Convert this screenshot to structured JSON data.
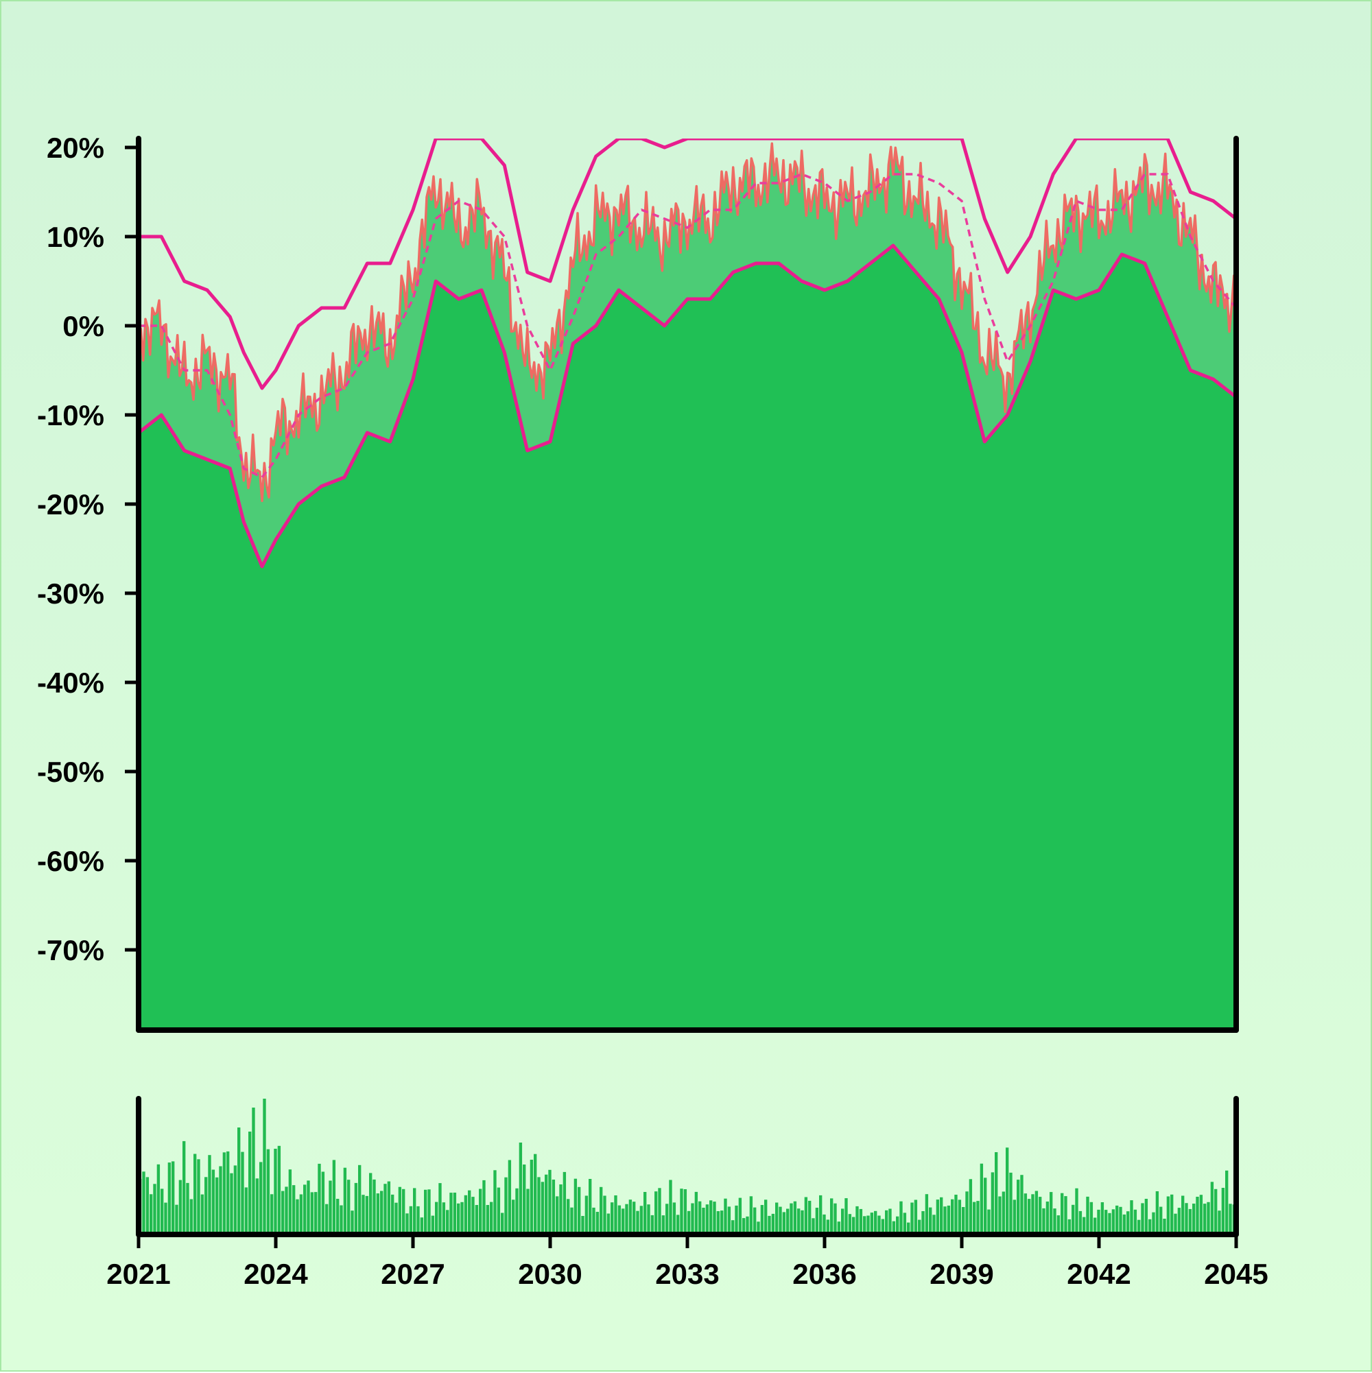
{
  "chart_data": {
    "type": "area",
    "title": "",
    "xlabel": "",
    "ylabel": "",
    "xlim": [
      2021,
      2045
    ],
    "ylim": [
      -79,
      21
    ],
    "grid": false,
    "x_ticks": [
      "2021",
      "2024",
      "2027",
      "2030",
      "2033",
      "2036",
      "2039",
      "2042",
      "2045"
    ],
    "y_ticks": [
      "20%",
      "10%",
      "0%",
      "-10%",
      "-20%",
      "-30%",
      "-40%",
      "-50%",
      "-60%",
      "-70%"
    ],
    "colors": {
      "area_fill": "#20c055",
      "band_fill": "#4ccc76",
      "price_line": "#ee6b63",
      "envelope": "#e81e8e",
      "middle": "#ea3d9c",
      "volume": "#22ba50",
      "axis": "#000000"
    },
    "series": [
      {
        "x": [
          2021,
          2021.5,
          2022,
          2022.5,
          2023,
          2023.3,
          2023.7,
          2024,
          2024.5,
          2025,
          2025.5,
          2026,
          2026.5,
          2027,
          2027.5,
          2028,
          2028.5,
          2029,
          2029.5,
          2030,
          2030.5,
          2031,
          2031.5,
          2032,
          2032.5,
          2033,
          2033.5,
          2034,
          2034.5,
          2035,
          2035.5,
          2036,
          2036.5,
          2037,
          2037.5,
          2038,
          2038.5,
          2039,
          2039.5,
          2040,
          2040.5,
          2041,
          2041.5,
          2042,
          2042.5,
          2043,
          2043.5,
          2044,
          2044.5,
          2045
        ],
        "y": [
          0,
          0,
          -6,
          -4,
          -6,
          -15,
          -18,
          -12,
          -10,
          -8,
          -5,
          0,
          -2,
          6,
          16,
          11,
          13,
          6,
          -5,
          -4,
          7,
          12,
          13,
          11,
          10,
          12,
          12,
          16,
          16,
          17,
          16,
          14,
          14,
          15,
          18,
          14,
          12,
          5,
          -3,
          -6,
          2,
          10,
          13,
          12,
          14,
          16,
          15,
          10,
          4,
          3
        ]
      },
      {
        "x": [
          2021,
          2021.5,
          2022,
          2022.5,
          2023,
          2023.3,
          2023.7,
          2024,
          2024.5,
          2025,
          2025.5,
          2026,
          2026.5,
          2027,
          2027.5,
          2028,
          2028.5,
          2029,
          2029.5,
          2030,
          2030.5,
          2031,
          2031.5,
          2032,
          2032.5,
          2033,
          2033.5,
          2034,
          2034.5,
          2035,
          2035.5,
          2036,
          2036.5,
          2037,
          2037.5,
          2038,
          2038.5,
          2039,
          2039.5,
          2040,
          2040.5,
          2041,
          2041.5,
          2042,
          2042.5,
          2043,
          2043.5,
          2044,
          2044.5,
          2045
        ],
        "y": [
          10,
          10,
          5,
          4,
          1,
          -3,
          -7,
          -5,
          0,
          2,
          2,
          7,
          7,
          13,
          21,
          21,
          21,
          18,
          6,
          5,
          13,
          19,
          21,
          21,
          20,
          21,
          21,
          21,
          21,
          21,
          21,
          21,
          21,
          21,
          21,
          21,
          21,
          21,
          12,
          6,
          10,
          17,
          21,
          21,
          21,
          21,
          21,
          15,
          14,
          12
        ]
      },
      {
        "x": [
          2021,
          2021.5,
          2022,
          2022.5,
          2023,
          2023.3,
          2023.7,
          2024,
          2024.5,
          2025,
          2025.5,
          2026,
          2026.5,
          2027,
          2027.5,
          2028,
          2028.5,
          2029,
          2029.5,
          2030,
          2030.5,
          2031,
          2031.5,
          2032,
          2032.5,
          2033,
          2033.5,
          2034,
          2034.5,
          2035,
          2035.5,
          2036,
          2036.5,
          2037,
          2037.5,
          2038,
          2038.5,
          2039,
          2039.5,
          2040,
          2040.5,
          2041,
          2041.5,
          2042,
          2042.5,
          2043,
          2043.5,
          2044,
          2044.5,
          2045
        ],
        "y": [
          0,
          0,
          -5,
          -5,
          -10,
          -16,
          -17,
          -15,
          -10,
          -8,
          -7,
          -3,
          -2,
          3,
          12,
          14,
          13,
          10,
          0,
          -5,
          1,
          8,
          10,
          13,
          12,
          11,
          13,
          13,
          16,
          16,
          17,
          16,
          14,
          15,
          17,
          17,
          16,
          14,
          3,
          -4,
          0,
          5,
          14,
          13,
          13,
          17,
          17,
          10,
          5,
          2
        ]
      },
      {
        "x": [
          2021,
          2021.5,
          2022,
          2022.5,
          2023,
          2023.3,
          2023.7,
          2024,
          2024.5,
          2025,
          2025.5,
          2026,
          2026.5,
          2027,
          2027.5,
          2028,
          2028.5,
          2029,
          2029.5,
          2030,
          2030.5,
          2031,
          2031.5,
          2032,
          2032.5,
          2033,
          2033.5,
          2034,
          2034.5,
          2035,
          2035.5,
          2036,
          2036.5,
          2037,
          2037.5,
          2038,
          2038.5,
          2039,
          2039.5,
          2040,
          2040.5,
          2041,
          2041.5,
          2042,
          2042.5,
          2043,
          2043.5,
          2044,
          2044.5,
          2045
        ],
        "y": [
          -12,
          -10,
          -14,
          -15,
          -16,
          -22,
          -27,
          -24,
          -20,
          -18,
          -17,
          -12,
          -13,
          -6,
          5,
          3,
          4,
          -3,
          -14,
          -13,
          -2,
          0,
          4,
          2,
          0,
          3,
          3,
          6,
          7,
          7,
          5,
          4,
          5,
          7,
          9,
          6,
          3,
          -3,
          -13,
          -10,
          -4,
          4,
          3,
          4,
          8,
          7,
          1,
          -5,
          -6,
          -8
        ]
      }
    ],
    "volume": {
      "x": [
        2021,
        2021.5,
        2022,
        2022.5,
        2023,
        2023.3,
        2023.7,
        2024,
        2024.5,
        2025,
        2025.5,
        2026,
        2026.5,
        2027,
        2027.5,
        2028,
        2028.5,
        2029,
        2029.5,
        2030,
        2030.5,
        2031,
        2031.5,
        2032,
        2032.5,
        2033,
        2033.5,
        2034,
        2034.5,
        2035,
        2035.5,
        2036,
        2036.5,
        2037,
        2037.5,
        2038,
        2038.5,
        2039,
        2039.5,
        2040,
        2040.5,
        2041,
        2041.5,
        2042,
        2042.5,
        2043,
        2043.5,
        2044,
        2044.5,
        2045
      ],
      "values": [
        0.55,
        0.5,
        0.6,
        0.6,
        0.75,
        0.8,
        0.95,
        0.7,
        0.4,
        0.55,
        0.45,
        0.5,
        0.45,
        0.3,
        0.35,
        0.35,
        0.4,
        0.45,
        0.7,
        0.55,
        0.4,
        0.35,
        0.3,
        0.3,
        0.35,
        0.35,
        0.3,
        0.25,
        0.25,
        0.25,
        0.3,
        0.25,
        0.25,
        0.2,
        0.2,
        0.25,
        0.3,
        0.35,
        0.5,
        0.6,
        0.4,
        0.3,
        0.3,
        0.25,
        0.25,
        0.25,
        0.3,
        0.3,
        0.4,
        0.45
      ]
    }
  }
}
